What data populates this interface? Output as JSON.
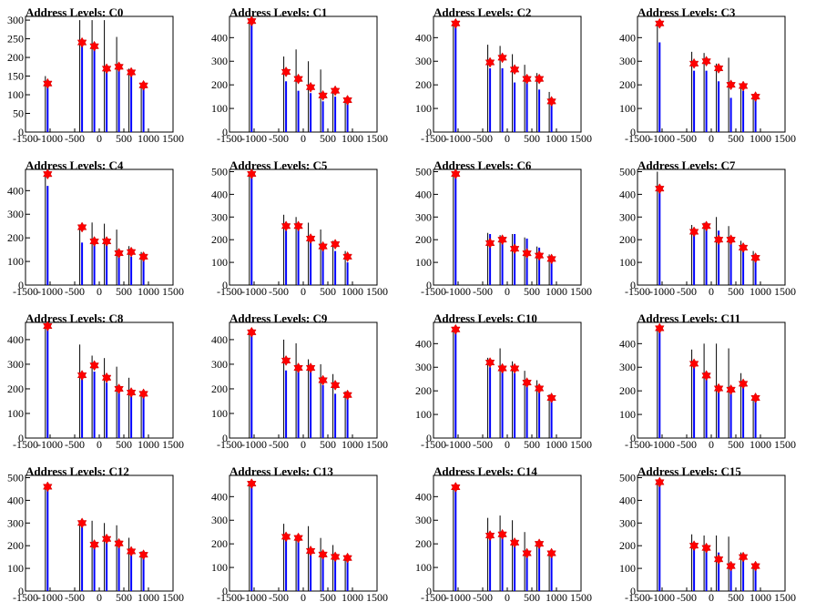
{
  "colors": {
    "histogram": "#0000ff",
    "spike": "#000000",
    "marker": "#ff0000",
    "frame": "#000000"
  },
  "chart_data": [
    {
      "type": "bar",
      "title": "Address Levels: C0",
      "xlim": [
        -1500,
        1500
      ],
      "ylim": [
        0,
        310
      ],
      "yticks": [
        0,
        50,
        100,
        150,
        200,
        250,
        300
      ],
      "xticks": [
        -1500,
        -1000,
        -500,
        0,
        500,
        1000,
        1500
      ],
      "peaks_x": [
        -1050,
        -350,
        -100,
        150,
        400,
        650,
        900
      ],
      "peaks_y": [
        130,
        240,
        230,
        170,
        175,
        160,
        125
      ],
      "spikes_y": [
        150,
        300,
        300,
        300,
        255,
        170,
        130
      ],
      "markers_x": [
        -1050,
        -350,
        -100,
        150,
        400,
        650,
        900
      ],
      "markers_y": [
        130,
        240,
        230,
        170,
        175,
        160,
        125
      ]
    },
    {
      "type": "bar",
      "title": "Address Levels: C1",
      "xlim": [
        -1500,
        1500
      ],
      "ylim": [
        0,
        490
      ],
      "yticks": [
        0,
        100,
        200,
        300,
        400
      ],
      "xticks": [
        -1500,
        -1000,
        -500,
        0,
        500,
        1000,
        1500
      ],
      "peaks_x": [
        -1050,
        -350,
        -100,
        150,
        400,
        650,
        900
      ],
      "peaks_y": [
        470,
        215,
        175,
        165,
        130,
        150,
        130
      ],
      "spikes_y": [
        470,
        320,
        350,
        300,
        265,
        185,
        140
      ],
      "markers_x": [
        -1050,
        -350,
        -100,
        150,
        400,
        650,
        900
      ],
      "markers_y": [
        470,
        255,
        225,
        190,
        155,
        175,
        135
      ]
    },
    {
      "type": "bar",
      "title": "Address Levels: C2",
      "xlim": [
        -1500,
        1500
      ],
      "ylim": [
        0,
        490
      ],
      "yticks": [
        0,
        100,
        200,
        300,
        400
      ],
      "xticks": [
        -1500,
        -1000,
        -500,
        0,
        500,
        1000,
        1500
      ],
      "peaks_x": [
        -1050,
        -350,
        -100,
        150,
        400,
        650,
        900
      ],
      "peaks_y": [
        460,
        270,
        270,
        210,
        215,
        180,
        120
      ],
      "spikes_y": [
        460,
        370,
        365,
        330,
        285,
        250,
        170
      ],
      "markers_x": [
        -1050,
        -350,
        -100,
        150,
        400,
        650,
        900
      ],
      "markers_y": [
        460,
        295,
        315,
        265,
        225,
        225,
        130
      ]
    },
    {
      "type": "bar",
      "title": "Address Levels: C3",
      "xlim": [
        -1500,
        1500
      ],
      "ylim": [
        0,
        490
      ],
      "yticks": [
        0,
        100,
        200,
        300,
        400
      ],
      "xticks": [
        -1500,
        -1000,
        -500,
        0,
        500,
        1000,
        1500
      ],
      "peaks_x": [
        -1050,
        -350,
        -100,
        150,
        400,
        650,
        900
      ],
      "peaks_y": [
        380,
        260,
        260,
        215,
        145,
        175,
        135
      ],
      "spikes_y": [
        460,
        340,
        335,
        290,
        315,
        205,
        160
      ],
      "markers_x": [
        -1050,
        -350,
        -100,
        150,
        400,
        650,
        900
      ],
      "markers_y": [
        460,
        290,
        300,
        270,
        200,
        195,
        150
      ]
    },
    {
      "type": "bar",
      "title": "Address Levels: C4",
      "xlim": [
        -1500,
        1500
      ],
      "ylim": [
        0,
        490
      ],
      "yticks": [
        0,
        100,
        200,
        300,
        400
      ],
      "xticks": [
        -1500,
        -1000,
        -500,
        0,
        500,
        1000,
        1500
      ],
      "peaks_x": [
        -1050,
        -350,
        -100,
        150,
        400,
        650,
        900
      ],
      "peaks_y": [
        420,
        180,
        180,
        190,
        140,
        120,
        110
      ],
      "spikes_y": [
        470,
        250,
        265,
        260,
        235,
        165,
        140
      ],
      "markers_x": [
        -1050,
        -350,
        -100,
        150,
        400,
        650,
        900
      ],
      "markers_y": [
        470,
        245,
        185,
        185,
        135,
        140,
        120
      ]
    },
    {
      "type": "bar",
      "title": "Address Levels: C5",
      "xlim": [
        -1500,
        1500
      ],
      "ylim": [
        0,
        510
      ],
      "yticks": [
        0,
        100,
        200,
        300,
        400,
        500
      ],
      "xticks": [
        -1500,
        -1000,
        -500,
        0,
        500,
        1000,
        1500
      ],
      "peaks_x": [
        -1050,
        -350,
        -100,
        150,
        400,
        650,
        900
      ],
      "peaks_y": [
        490,
        240,
        250,
        195,
        165,
        150,
        100
      ],
      "spikes_y": [
        490,
        310,
        300,
        275,
        245,
        195,
        150
      ],
      "markers_x": [
        -1050,
        -350,
        -100,
        150,
        400,
        650,
        900
      ],
      "markers_y": [
        490,
        260,
        260,
        205,
        170,
        180,
        125
      ]
    },
    {
      "type": "bar",
      "title": "Address Levels: C6",
      "xlim": [
        -1500,
        1500
      ],
      "ylim": [
        0,
        510
      ],
      "yticks": [
        0,
        100,
        200,
        300,
        400,
        500
      ],
      "xticks": [
        -1500,
        -1000,
        -500,
        0,
        500,
        1000,
        1500
      ],
      "peaks_x": [
        -1050,
        -350,
        -100,
        150,
        400,
        650,
        900
      ],
      "peaks_y": [
        490,
        225,
        200,
        225,
        205,
        165,
        130
      ],
      "spikes_y": [
        490,
        230,
        220,
        225,
        210,
        170,
        135
      ],
      "markers_x": [
        -1050,
        -350,
        -100,
        150,
        400,
        650,
        900
      ],
      "markers_y": [
        490,
        185,
        200,
        160,
        140,
        130,
        115
      ]
    },
    {
      "type": "bar",
      "title": "Address Levels: C7",
      "xlim": [
        -1500,
        1500
      ],
      "ylim": [
        0,
        510
      ],
      "yticks": [
        0,
        100,
        200,
        300,
        400,
        500
      ],
      "xticks": [
        -1500,
        -1000,
        -500,
        0,
        500,
        1000,
        1500
      ],
      "peaks_x": [
        -1050,
        -350,
        -100,
        150,
        400,
        650,
        900
      ],
      "peaks_y": [
        420,
        245,
        250,
        240,
        205,
        180,
        120
      ],
      "spikes_y": [
        500,
        265,
        275,
        300,
        260,
        195,
        150
      ],
      "markers_x": [
        -1050,
        -350,
        -100,
        150,
        400,
        650,
        900
      ],
      "markers_y": [
        425,
        235,
        260,
        200,
        200,
        165,
        120
      ]
    },
    {
      "type": "bar",
      "title": "Address Levels: C8",
      "xlim": [
        -1500,
        1500
      ],
      "ylim": [
        0,
        470
      ],
      "yticks": [
        0,
        100,
        200,
        300,
        400
      ],
      "xticks": [
        -1500,
        -1000,
        -500,
        0,
        500,
        1000,
        1500
      ],
      "peaks_x": [
        -1050,
        -350,
        -100,
        150,
        400,
        650,
        900
      ],
      "peaks_y": [
        455,
        240,
        270,
        225,
        200,
        170,
        170
      ],
      "spikes_y": [
        455,
        380,
        335,
        325,
        290,
        245,
        190
      ],
      "markers_x": [
        -1050,
        -350,
        -100,
        150,
        400,
        650,
        900
      ],
      "markers_y": [
        455,
        255,
        295,
        245,
        200,
        185,
        180
      ]
    },
    {
      "type": "bar",
      "title": "Address Levels: C9",
      "xlim": [
        -1500,
        1500
      ],
      "ylim": [
        0,
        470
      ],
      "yticks": [
        0,
        100,
        200,
        300,
        400
      ],
      "xticks": [
        -1500,
        -1000,
        -500,
        0,
        500,
        1000,
        1500
      ],
      "peaks_x": [
        -1050,
        -350,
        -100,
        150,
        400,
        650,
        900
      ],
      "peaks_y": [
        430,
        275,
        280,
        270,
        215,
        180,
        165
      ],
      "spikes_y": [
        430,
        400,
        385,
        320,
        300,
        260,
        190
      ],
      "markers_x": [
        -1050,
        -350,
        -100,
        150,
        400,
        650,
        900
      ],
      "markers_y": [
        430,
        315,
        285,
        285,
        235,
        215,
        175
      ]
    },
    {
      "type": "bar",
      "title": "Address Levels: C10",
      "xlim": [
        -1500,
        1500
      ],
      "ylim": [
        0,
        490
      ],
      "yticks": [
        0,
        100,
        200,
        300,
        400
      ],
      "xticks": [
        -1500,
        -1000,
        -500,
        0,
        500,
        1000,
        1500
      ],
      "peaks_x": [
        -1050,
        -350,
        -100,
        150,
        400,
        650,
        900
      ],
      "peaks_y": [
        460,
        300,
        300,
        275,
        220,
        200,
        170
      ],
      "spikes_y": [
        460,
        340,
        380,
        325,
        285,
        245,
        185
      ],
      "markers_x": [
        -1050,
        -350,
        -100,
        150,
        400,
        650,
        900
      ],
      "markers_y": [
        460,
        320,
        295,
        295,
        235,
        210,
        170
      ]
    },
    {
      "type": "bar",
      "title": "Address Levels: C11",
      "xlim": [
        -1500,
        1500
      ],
      "ylim": [
        0,
        490
      ],
      "yticks": [
        0,
        100,
        200,
        300,
        400
      ],
      "xticks": [
        -1500,
        -1000,
        -500,
        0,
        500,
        1000,
        1500
      ],
      "peaks_x": [
        -1050,
        -350,
        -100,
        150,
        400,
        650,
        900
      ],
      "peaks_y": [
        460,
        300,
        255,
        215,
        200,
        220,
        160
      ],
      "spikes_y": [
        460,
        375,
        400,
        400,
        380,
        275,
        180
      ],
      "markers_x": [
        -1050,
        -350,
        -100,
        150,
        400,
        650,
        900
      ],
      "markers_y": [
        465,
        315,
        265,
        210,
        205,
        230,
        170
      ]
    },
    {
      "type": "bar",
      "title": "Address Levels: C12",
      "xlim": [
        -1500,
        1500
      ],
      "ylim": [
        0,
        510
      ],
      "yticks": [
        0,
        100,
        200,
        300,
        400,
        500
      ],
      "xticks": [
        -1500,
        -1000,
        -500,
        0,
        500,
        1000,
        1500
      ],
      "peaks_x": [
        -1050,
        -350,
        -100,
        150,
        400,
        650,
        900
      ],
      "peaks_y": [
        460,
        300,
        205,
        240,
        215,
        185,
        155
      ],
      "spikes_y": [
        460,
        300,
        310,
        300,
        290,
        235,
        175
      ],
      "markers_x": [
        -1050,
        -350,
        -100,
        150,
        400,
        650,
        900
      ],
      "markers_y": [
        460,
        300,
        205,
        230,
        210,
        175,
        160
      ]
    },
    {
      "type": "bar",
      "title": "Address Levels: C13",
      "xlim": [
        -1500,
        1500
      ],
      "ylim": [
        0,
        490
      ],
      "yticks": [
        0,
        100,
        200,
        300,
        400
      ],
      "xticks": [
        -1500,
        -1000,
        -500,
        0,
        500,
        1000,
        1500
      ],
      "peaks_x": [
        -1050,
        -350,
        -100,
        150,
        400,
        650,
        900
      ],
      "peaks_y": [
        455,
        220,
        220,
        175,
        150,
        140,
        135
      ],
      "spikes_y": [
        455,
        285,
        235,
        275,
        225,
        195,
        150
      ],
      "markers_x": [
        -1050,
        -350,
        -100,
        150,
        400,
        650,
        900
      ],
      "markers_y": [
        455,
        230,
        225,
        170,
        155,
        145,
        140
      ]
    },
    {
      "type": "bar",
      "title": "Address Levels: C14",
      "xlim": [
        -1500,
        1500
      ],
      "ylim": [
        0,
        490
      ],
      "yticks": [
        0,
        100,
        200,
        300,
        400
      ],
      "xticks": [
        -1500,
        -1000,
        -500,
        0,
        500,
        1000,
        1500
      ],
      "peaks_x": [
        -1050,
        -350,
        -100,
        150,
        400,
        650,
        900
      ],
      "peaks_y": [
        440,
        230,
        240,
        195,
        160,
        200,
        150
      ],
      "spikes_y": [
        440,
        310,
        320,
        300,
        250,
        205,
        165
      ],
      "markers_x": [
        -1050,
        -350,
        -100,
        150,
        400,
        650,
        900
      ],
      "markers_y": [
        440,
        235,
        240,
        205,
        160,
        200,
        160
      ]
    },
    {
      "type": "bar",
      "title": "Address Levels: C15",
      "xlim": [
        -1500,
        1500
      ],
      "ylim": [
        0,
        510
      ],
      "yticks": [
        0,
        100,
        200,
        300,
        400,
        500
      ],
      "xticks": [
        -1500,
        -1000,
        -500,
        0,
        500,
        1000,
        1500
      ],
      "peaks_x": [
        -1050,
        -350,
        -100,
        150,
        400,
        650,
        900
      ],
      "peaks_y": [
        480,
        215,
        205,
        170,
        100,
        140,
        95
      ],
      "spikes_y": [
        480,
        250,
        245,
        245,
        240,
        170,
        120
      ],
      "markers_x": [
        -1050,
        -350,
        -100,
        150,
        400,
        650,
        900
      ],
      "markers_y": [
        480,
        200,
        190,
        140,
        110,
        150,
        110
      ]
    }
  ]
}
